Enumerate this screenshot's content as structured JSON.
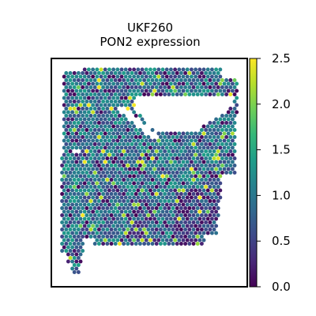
{
  "chart_data": {
    "type": "scatter",
    "title_line1": "UKF260",
    "title_line2": "PON2 expression",
    "xlabel": "",
    "ylabel": "",
    "colorbar": {
      "label": "",
      "min": 0.0,
      "max": 2.5,
      "ticks": [
        "0.0",
        "0.5",
        "1.0",
        "1.5",
        "2.0",
        "2.5"
      ],
      "colormap": "viridis"
    },
    "spot_values_summary": "Hexagonal spatial transcriptomics spots; values mostly 0.5–1.5 with scattered high (~2.0–2.5) spots and dark (~0) patches in lower right",
    "colors": {
      "viridis_stops": [
        "#440154",
        "#482878",
        "#3e4989",
        "#31688e",
        "#26828e",
        "#1f9e89",
        "#35b779",
        "#6ece58",
        "#b5de2b",
        "#fde725"
      ]
    }
  }
}
